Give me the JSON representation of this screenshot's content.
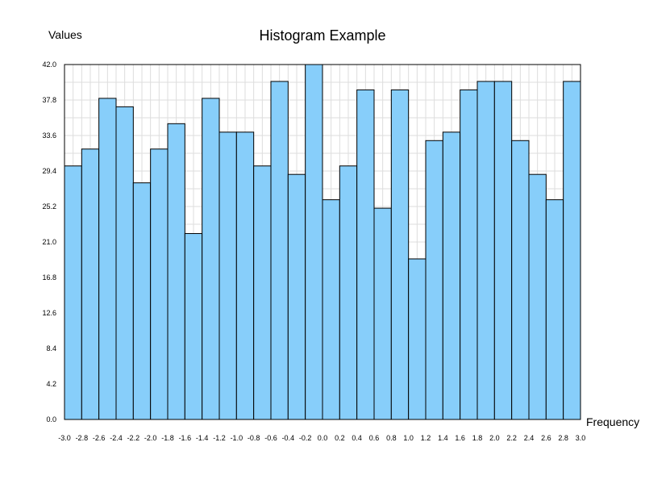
{
  "chart_data": {
    "type": "bar",
    "title": "Histogram Example",
    "xlabel": "Frequency",
    "ylabel": "Values",
    "xlim": [
      -3.0,
      3.0
    ],
    "ylim": [
      0,
      42.0
    ],
    "bin_width": 0.2,
    "x_ticks": [
      "-3.0",
      "-2.8",
      "-2.6",
      "-2.4",
      "-2.2",
      "-2.0",
      "-1.8",
      "-1.6",
      "-1.4",
      "-1.2",
      "-1.0",
      "-0.8",
      "-0.6",
      "-0.4",
      "-0.2",
      "0.0",
      "0.2",
      "0.4",
      "0.6",
      "0.8",
      "1.0",
      "1.2",
      "1.4",
      "1.6",
      "1.8",
      "2.0",
      "2.2",
      "2.4",
      "2.6",
      "2.8",
      "3.0"
    ],
    "y_ticks": [
      "0.0",
      "4.2",
      "8.4",
      "12.6",
      "16.8",
      "21.0",
      "25.2",
      "29.4",
      "33.6",
      "37.8",
      "42.0"
    ],
    "bin_starts": [
      -3.0,
      -2.8,
      -2.6,
      -2.4,
      -2.2,
      -2.0,
      -1.8,
      -1.6,
      -1.4,
      -1.2,
      -1.0,
      -0.8,
      -0.6,
      -0.4,
      -0.2,
      0.0,
      0.2,
      0.4,
      0.6,
      0.8,
      1.0,
      1.2,
      1.4,
      1.6,
      1.8,
      2.0,
      2.2,
      2.4,
      2.6,
      2.8
    ],
    "values": [
      30,
      32,
      38,
      37,
      28,
      32,
      35,
      22,
      38,
      34,
      34,
      30,
      40,
      29,
      42,
      26,
      30,
      39,
      25,
      39,
      19,
      33,
      34,
      39,
      40,
      40,
      33,
      29,
      26,
      40
    ],
    "grid": true,
    "legend": "none",
    "bar_color": "#87cefa",
    "edge_color": "#000000",
    "grid_color": "#dddddd"
  }
}
